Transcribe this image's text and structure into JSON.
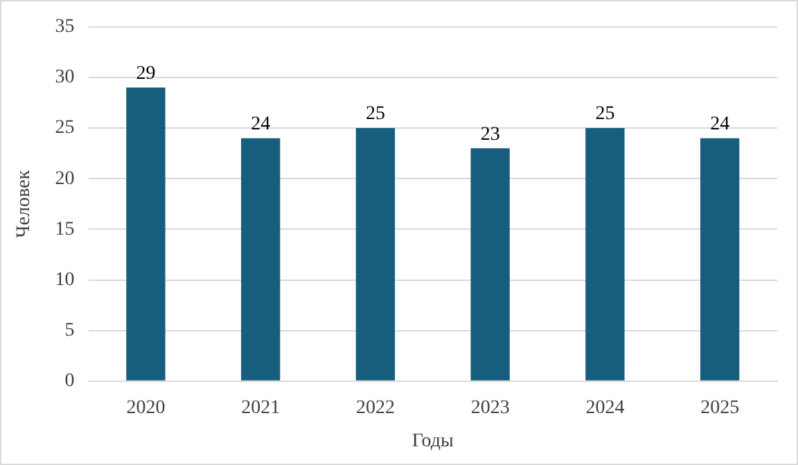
{
  "chart_data": {
    "type": "bar",
    "xlabel": "Годы",
    "ylabel": "Человек",
    "categories": [
      "2020",
      "2021",
      "2022",
      "2023",
      "2024",
      "2025"
    ],
    "values": [
      29,
      24,
      25,
      23,
      25,
      24
    ],
    "color": "#175e7e",
    "ylim": [
      0,
      35
    ],
    "yticks": [
      0,
      5,
      10,
      15,
      20,
      25,
      30,
      35
    ],
    "grid": "y",
    "data_labels": true
  }
}
